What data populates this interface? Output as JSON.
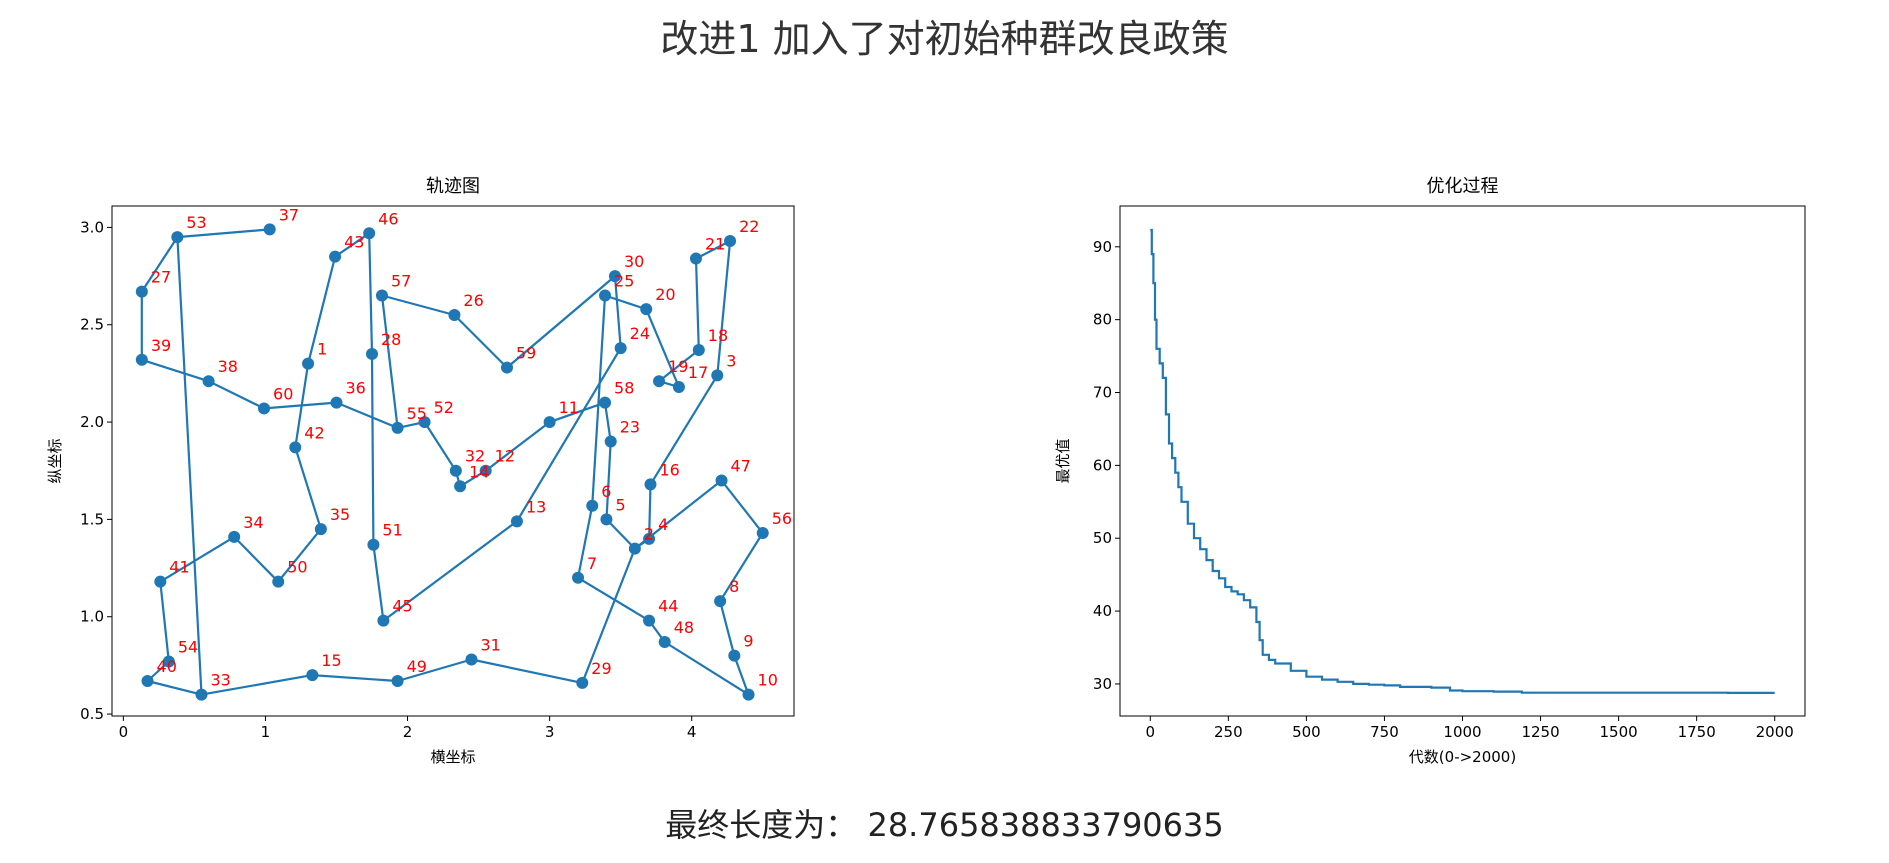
{
  "figure": {
    "suptitle": "改进1 加入了对初始种群改良政策",
    "result_label": "最终长度为：",
    "result_value": "28.765838833790635"
  },
  "colors": {
    "line": "#1f77b4",
    "label": "#ff0000",
    "axis": "#000000"
  },
  "chart_data": [
    {
      "type": "line",
      "title": "轨迹图",
      "xlabel": "横坐标",
      "ylabel": "纵坐标",
      "xlim": [
        -0.08,
        4.72
      ],
      "ylim": [
        0.49,
        3.11
      ],
      "xticks": [
        0,
        1,
        2,
        3,
        4
      ],
      "xtick_labels": [
        "0",
        "1",
        "2",
        "3",
        "4"
      ],
      "yticks": [
        0.5,
        1.0,
        1.5,
        2.0,
        2.5,
        3.0
      ],
      "ytick_labels": [
        "0.5",
        "1.0",
        "1.5",
        "2.0",
        "2.5",
        "3.0"
      ],
      "markers": true,
      "grid": false,
      "points": [
        {
          "id": "1",
          "x": 1.3,
          "y": 2.3
        },
        {
          "id": "2",
          "x": 3.6,
          "y": 1.35
        },
        {
          "id": "3",
          "x": 4.18,
          "y": 2.24
        },
        {
          "id": "4",
          "x": 3.7,
          "y": 1.4
        },
        {
          "id": "5",
          "x": 3.4,
          "y": 1.5
        },
        {
          "id": "6",
          "x": 3.3,
          "y": 1.57
        },
        {
          "id": "7",
          "x": 3.2,
          "y": 1.2
        },
        {
          "id": "8",
          "x": 4.2,
          "y": 1.08
        },
        {
          "id": "9",
          "x": 4.3,
          "y": 0.8
        },
        {
          "id": "10",
          "x": 4.4,
          "y": 0.6
        },
        {
          "id": "11",
          "x": 3.0,
          "y": 2.0
        },
        {
          "id": "12",
          "x": 2.55,
          "y": 1.75
        },
        {
          "id": "13",
          "x": 2.77,
          "y": 1.49
        },
        {
          "id": "14",
          "x": 2.37,
          "y": 1.67
        },
        {
          "id": "15",
          "x": 1.33,
          "y": 0.7
        },
        {
          "id": "16",
          "x": 3.71,
          "y": 1.68
        },
        {
          "id": "17",
          "x": 3.91,
          "y": 2.18
        },
        {
          "id": "18",
          "x": 4.05,
          "y": 2.37
        },
        {
          "id": "19",
          "x": 3.77,
          "y": 2.21
        },
        {
          "id": "20",
          "x": 3.68,
          "y": 2.58
        },
        {
          "id": "21",
          "x": 4.03,
          "y": 2.84
        },
        {
          "id": "22",
          "x": 4.27,
          "y": 2.93
        },
        {
          "id": "23",
          "x": 3.43,
          "y": 1.9
        },
        {
          "id": "24",
          "x": 3.5,
          "y": 2.38
        },
        {
          "id": "25",
          "x": 3.39,
          "y": 2.65
        },
        {
          "id": "26",
          "x": 2.33,
          "y": 2.55
        },
        {
          "id": "27",
          "x": 0.13,
          "y": 2.67
        },
        {
          "id": "28",
          "x": 1.75,
          "y": 2.35
        },
        {
          "id": "29",
          "x": 3.23,
          "y": 0.66
        },
        {
          "id": "30",
          "x": 3.46,
          "y": 2.75
        },
        {
          "id": "31",
          "x": 2.45,
          "y": 0.78
        },
        {
          "id": "32",
          "x": 2.34,
          "y": 1.75
        },
        {
          "id": "33",
          "x": 0.55,
          "y": 0.6
        },
        {
          "id": "34",
          "x": 0.78,
          "y": 1.41
        },
        {
          "id": "35",
          "x": 1.39,
          "y": 1.45
        },
        {
          "id": "36",
          "x": 1.5,
          "y": 2.1
        },
        {
          "id": "37",
          "x": 1.03,
          "y": 2.99
        },
        {
          "id": "38",
          "x": 0.6,
          "y": 2.21
        },
        {
          "id": "39",
          "x": 0.13,
          "y": 2.32
        },
        {
          "id": "40",
          "x": 0.17,
          "y": 0.67
        },
        {
          "id": "41",
          "x": 0.26,
          "y": 1.18
        },
        {
          "id": "42",
          "x": 1.21,
          "y": 1.87
        },
        {
          "id": "43",
          "x": 1.49,
          "y": 2.85
        },
        {
          "id": "44",
          "x": 3.7,
          "y": 0.98
        },
        {
          "id": "45",
          "x": 1.83,
          "y": 0.98
        },
        {
          "id": "46",
          "x": 1.73,
          "y": 2.97
        },
        {
          "id": "47",
          "x": 4.21,
          "y": 1.7
        },
        {
          "id": "48",
          "x": 3.81,
          "y": 0.87
        },
        {
          "id": "49",
          "x": 1.93,
          "y": 0.67
        },
        {
          "id": "50",
          "x": 1.09,
          "y": 1.18
        },
        {
          "id": "51",
          "x": 1.76,
          "y": 1.37
        },
        {
          "id": "52",
          "x": 2.12,
          "y": 2.0
        },
        {
          "id": "53",
          "x": 0.38,
          "y": 2.95
        },
        {
          "id": "54",
          "x": 0.32,
          "y": 0.77
        },
        {
          "id": "55",
          "x": 1.93,
          "y": 1.97
        },
        {
          "id": "56",
          "x": 4.5,
          "y": 1.43
        },
        {
          "id": "57",
          "x": 1.82,
          "y": 2.65
        },
        {
          "id": "58",
          "x": 3.39,
          "y": 2.1
        },
        {
          "id": "59",
          "x": 2.7,
          "y": 2.28
        },
        {
          "id": "60",
          "x": 0.99,
          "y": 2.07
        }
      ],
      "path": [
        "33",
        "40",
        "54",
        "41",
        "34",
        "50",
        "35",
        "42",
        "1",
        "43",
        "46",
        "28",
        "51",
        "45",
        "13",
        "24",
        "30",
        "59",
        "26",
        "57",
        "55",
        "52",
        "32",
        "14",
        "12",
        "11",
        "58",
        "23",
        "5",
        "2",
        "4",
        "16",
        "3",
        "22",
        "21",
        "18",
        "19",
        "17",
        "20",
        "25",
        "6",
        "7",
        "44",
        "48",
        "10",
        "9",
        "8",
        "56",
        "47",
        "2",
        "29",
        "31",
        "49",
        "15",
        "33",
        "53",
        "37",
        "53",
        "27",
        "39",
        "38",
        "60",
        "36",
        "55",
        "52",
        "32",
        "14"
      ]
    },
    {
      "type": "line",
      "title": "优化过程",
      "xlabel": "代数(0->2000)",
      "ylabel": "最优值",
      "xlim": [
        -97,
        2097
      ],
      "ylim": [
        25.6,
        95.6
      ],
      "xticks": [
        0,
        250,
        500,
        750,
        1000,
        1250,
        1500,
        1750,
        2000
      ],
      "xtick_labels": [
        "0",
        "250",
        "500",
        "750",
        "1000",
        "1250",
        "1500",
        "1750",
        "2000"
      ],
      "yticks": [
        30,
        40,
        50,
        60,
        70,
        80,
        90
      ],
      "ytick_labels": [
        "30",
        "40",
        "50",
        "60",
        "70",
        "80",
        "90"
      ],
      "grid": false,
      "series": [
        {
          "x": [
            0,
            5,
            10,
            15,
            20,
            30,
            40,
            50,
            60,
            70,
            80,
            90,
            100,
            120,
            140,
            160,
            180,
            200,
            220,
            240,
            260,
            280,
            300,
            320,
            340,
            350,
            360,
            380,
            400,
            450,
            500,
            550,
            600,
            650,
            700,
            750,
            800,
            900,
            960,
            1000,
            1100,
            1190,
            1300,
            1500,
            1700,
            1850,
            2000
          ],
          "y": [
            92.3,
            89.0,
            85.0,
            80.0,
            76.0,
            74.0,
            72.0,
            67.0,
            63.0,
            61.0,
            59.0,
            57.0,
            55.0,
            52.0,
            50.0,
            48.5,
            47.0,
            45.5,
            44.5,
            43.3,
            42.7,
            42.3,
            41.5,
            40.5,
            38.5,
            36.0,
            34.0,
            33.3,
            32.8,
            31.8,
            31.0,
            30.6,
            30.3,
            30.0,
            29.9,
            29.8,
            29.6,
            29.5,
            29.1,
            29.0,
            28.95,
            28.8,
            28.8,
            28.8,
            28.8,
            28.77,
            28.77
          ]
        }
      ]
    }
  ]
}
